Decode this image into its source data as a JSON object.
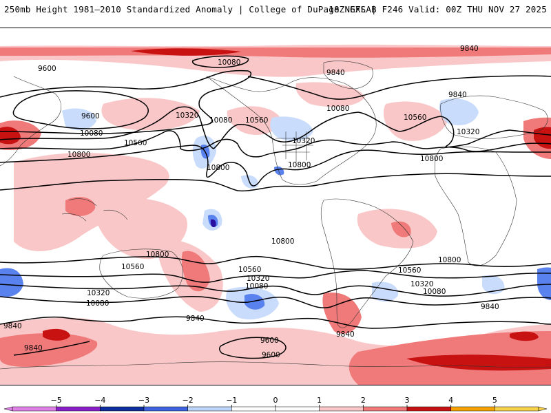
{
  "header": {
    "title": "250mb Height 1981–2010 Standardized Anomaly | College of DuPage NEXLAB",
    "run": "18Z GFS | F246 Valid: 00Z THU NOV 27 2025"
  },
  "map": {
    "projection": "cylindrical equidistant, Pacific-centered",
    "contours": [
      {
        "id": "c9600-n",
        "label": "9600"
      },
      {
        "id": "c9840-n",
        "label": "9840"
      },
      {
        "id": "c10080-n",
        "label": "10080"
      },
      {
        "id": "c10320-n",
        "label": "10320"
      },
      {
        "id": "c10560-n",
        "label": "10560"
      },
      {
        "id": "c10800-n",
        "label": "10800"
      },
      {
        "id": "c10800-s",
        "label": "10800"
      },
      {
        "id": "c10560-s",
        "label": "10560"
      },
      {
        "id": "c10320-s",
        "label": "10320"
      },
      {
        "id": "c10080-s",
        "label": "10080"
      },
      {
        "id": "c9840-s",
        "label": "9840"
      },
      {
        "id": "c9600-s",
        "label": "9600"
      }
    ],
    "labels": [
      {
        "text": "9600"
      },
      {
        "text": "10080"
      },
      {
        "text": "9840"
      },
      {
        "text": "9840"
      },
      {
        "text": "9840"
      },
      {
        "text": "9600"
      },
      {
        "text": "10080"
      },
      {
        "text": "10080"
      },
      {
        "text": "10320"
      },
      {
        "text": "10560"
      },
      {
        "text": "10080"
      },
      {
        "text": "10560"
      },
      {
        "text": "10320"
      },
      {
        "text": "10560"
      },
      {
        "text": "10320"
      },
      {
        "text": "10800"
      },
      {
        "text": "10800"
      },
      {
        "text": "10800"
      },
      {
        "text": "10800"
      },
      {
        "text": "10800"
      },
      {
        "text": "10800"
      },
      {
        "text": "10800"
      },
      {
        "text": "10560"
      },
      {
        "text": "10560"
      },
      {
        "text": "10560"
      },
      {
        "text": "10320"
      },
      {
        "text": "10320"
      },
      {
        "text": "10320"
      },
      {
        "text": "10080"
      },
      {
        "text": "10080"
      },
      {
        "text": "10080"
      },
      {
        "text": "9840"
      },
      {
        "text": "9840"
      },
      {
        "text": "9840"
      },
      {
        "text": "9840"
      },
      {
        "text": "9840"
      },
      {
        "text": "9600"
      },
      {
        "text": "9600"
      }
    ],
    "anomaly_colors": {
      "pos1": "#f9c7c7",
      "pos2": "#f07a7a",
      "pos3": "#c81212",
      "neg1": "#c9dcfb",
      "neg2": "#5a82ee",
      "neg3": "#1d3db4",
      "neg4": "#2a0fa0"
    }
  },
  "colorbar": {
    "ticks": [
      "−5",
      "−4",
      "−3",
      "−2",
      "−1",
      "0",
      "1",
      "2",
      "3",
      "4",
      "5"
    ],
    "segments": [
      {
        "color": "#e07fe8"
      },
      {
        "color": "#8a1fc9"
      },
      {
        "color": "#0f2e9e"
      },
      {
        "color": "#3d63e0"
      },
      {
        "color": "#bcd4f7"
      },
      {
        "color": "#ffffff"
      },
      {
        "color": "#ffffff"
      },
      {
        "color": "#f9c7c7"
      },
      {
        "color": "#f07a7a"
      },
      {
        "color": "#c81212"
      },
      {
        "color": "#f5a300"
      },
      {
        "color": "#f7d24a"
      }
    ]
  }
}
